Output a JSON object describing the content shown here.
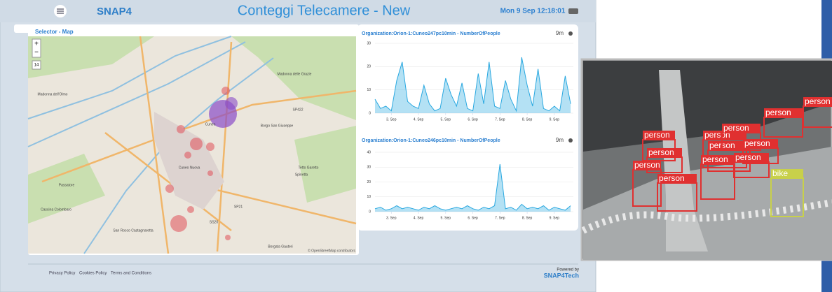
{
  "header": {
    "logo": "SNAP4",
    "title": "Conteggi Telecamere - New",
    "datetime": "Mon 9 Sep 12:18:01"
  },
  "map": {
    "title": "Selector - Map",
    "zoom_in": "+",
    "zoom_out": "−",
    "layer_button": "14",
    "places": [
      "Madonna dell'Olmo",
      "Madonna delle Grazie",
      "Borgo San Giuseppe",
      "Cuneo",
      "Cuneo Nuova",
      "Passatore",
      "Tetto Garetto",
      "Spinetta",
      "Cascina Colombaro",
      "San Rocco Castagnaretta",
      "Borgata Gauteri",
      "SP422",
      "SP21",
      "SS20"
    ],
    "attribution": "© OpenStreetMap contributors"
  },
  "charts": [
    {
      "type": "area",
      "title": "Organization:Orion-1:Cuneo247pc10min - NumberOfPeople",
      "age": "9m",
      "x": [
        2.4,
        2.6,
        2.8,
        3.0,
        3.2,
        3.4,
        3.6,
        3.8,
        4.0,
        4.2,
        4.4,
        4.6,
        4.8,
        5.0,
        5.2,
        5.4,
        5.6,
        5.8,
        6.0,
        6.2,
        6.4,
        6.6,
        6.8,
        7.0,
        7.2,
        7.4,
        7.6,
        7.8,
        8.0,
        8.2,
        8.4,
        8.6,
        8.8,
        9.0,
        9.2,
        9.4,
        9.6
      ],
      "values": [
        6,
        2,
        3,
        1,
        14,
        22,
        5,
        3,
        2,
        12,
        4,
        1,
        2,
        15,
        8,
        3,
        13,
        2,
        1,
        17,
        4,
        22,
        3,
        2,
        14,
        6,
        1,
        24,
        12,
        3,
        19,
        2,
        1,
        3,
        1,
        16,
        4
      ],
      "xlim": [
        2.4,
        9.7
      ],
      "xticks": [
        {
          "value": 3,
          "label": "3. Sep"
        },
        {
          "value": 4,
          "label": "4. Sep"
        },
        {
          "value": 5,
          "label": "5. Sep"
        },
        {
          "value": 6,
          "label": "6. Sep"
        },
        {
          "value": 7,
          "label": "7. Sep"
        },
        {
          "value": 8,
          "label": "8. Sep"
        },
        {
          "value": 9,
          "label": "9. Sep"
        }
      ],
      "ylim": [
        0,
        30
      ],
      "yticks": [
        0,
        10,
        20,
        30
      ],
      "color": "#29a8e0",
      "grid": true
    },
    {
      "type": "area",
      "title": "Organization:Orion-1:Cuneo246pc10min - NumberOfPeople",
      "age": "9m",
      "x": [
        2.4,
        2.6,
        2.8,
        3.0,
        3.2,
        3.4,
        3.6,
        3.8,
        4.0,
        4.2,
        4.4,
        4.6,
        4.8,
        5.0,
        5.2,
        5.4,
        5.6,
        5.8,
        6.0,
        6.2,
        6.4,
        6.6,
        6.8,
        7.0,
        7.2,
        7.4,
        7.6,
        7.8,
        8.0,
        8.2,
        8.4,
        8.6,
        8.8,
        9.0,
        9.2,
        9.4,
        9.6
      ],
      "values": [
        2,
        3,
        1,
        2,
        4,
        2,
        3,
        2,
        1,
        3,
        2,
        4,
        2,
        1,
        2,
        3,
        2,
        4,
        2,
        1,
        3,
        2,
        4,
        32,
        2,
        3,
        1,
        5,
        2,
        3,
        2,
        4,
        1,
        3,
        2,
        1,
        4
      ],
      "xlim": [
        2.4,
        9.7
      ],
      "xticks": [
        {
          "value": 3,
          "label": "3. Sep"
        },
        {
          "value": 4,
          "label": "4. Sep"
        },
        {
          "value": 5,
          "label": "5. Sep"
        },
        {
          "value": 6,
          "label": "6. Sep"
        },
        {
          "value": 7,
          "label": "7. Sep"
        },
        {
          "value": 8,
          "label": "8. Sep"
        },
        {
          "value": 9,
          "label": "9. Sep"
        }
      ],
      "ylim": [
        0,
        40
      ],
      "yticks": [
        0,
        10,
        20,
        30,
        40
      ],
      "color": "#29a8e0",
      "grid": true
    }
  ],
  "footer": {
    "links": [
      "Privacy Policy",
      "Cookies Policy",
      "Terms and Conditions"
    ],
    "powered_by": "Powered by",
    "brand": "SNAP4Tech"
  },
  "camera": {
    "detections": [
      "person",
      "person",
      "person",
      "person",
      "person",
      "person",
      "person",
      "person",
      "person",
      "person",
      "person",
      "person",
      "bike"
    ]
  }
}
